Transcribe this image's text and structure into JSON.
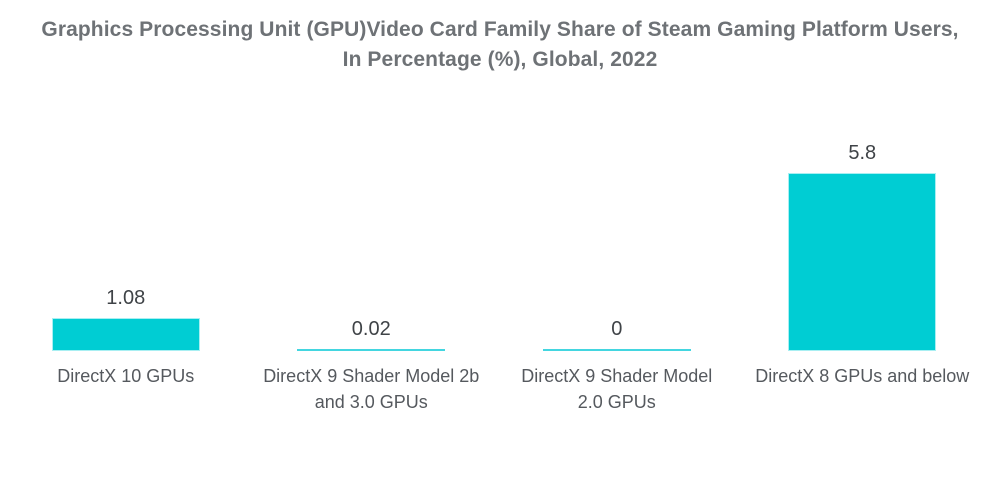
{
  "title": {
    "line1": "Graphics Processing Unit (GPU)Video Card Family Share of Steam Gaming Platform Users,",
    "line2": "In Percentage (%), Global, 2022"
  },
  "chart_data": {
    "type": "bar",
    "title": "Graphics Processing Unit (GPU)Video Card Family Share of Steam Gaming Platform Users, In Percentage (%), Global, 2022",
    "categories": [
      "DirectX 10 GPUs",
      "DirectX 9 Shader Model 2b and 3.0 GPUs",
      "DirectX 9 Shader Model 2.0 GPUs",
      "DirectX 8 GPUs and below"
    ],
    "category_label_lines": [
      [
        "DirectX 10 GPUs"
      ],
      [
        "DirectX 9 Shader Model 2b",
        "and 3.0 GPUs"
      ],
      [
        "DirectX 9 Shader Model",
        "2.0 GPUs"
      ],
      [
        "DirectX 8 GPUs and below"
      ]
    ],
    "values": [
      1.08,
      0.02,
      0,
      5.8
    ],
    "value_labels": [
      "1.08",
      "0.02",
      "0",
      "5.8"
    ],
    "xlabel": "",
    "ylabel": "",
    "ylim": [
      0,
      5.8
    ],
    "grid": false,
    "legend_position": "none",
    "unit": "%"
  },
  "colors": {
    "bar_fill": "#00cdd3",
    "bar_stroke": "#a8eff2",
    "zero_bar": "#43d6e0",
    "title_text": "#6e7276",
    "value_text": "#3f4347",
    "category_text": "#55595e",
    "background": "#ffffff"
  }
}
